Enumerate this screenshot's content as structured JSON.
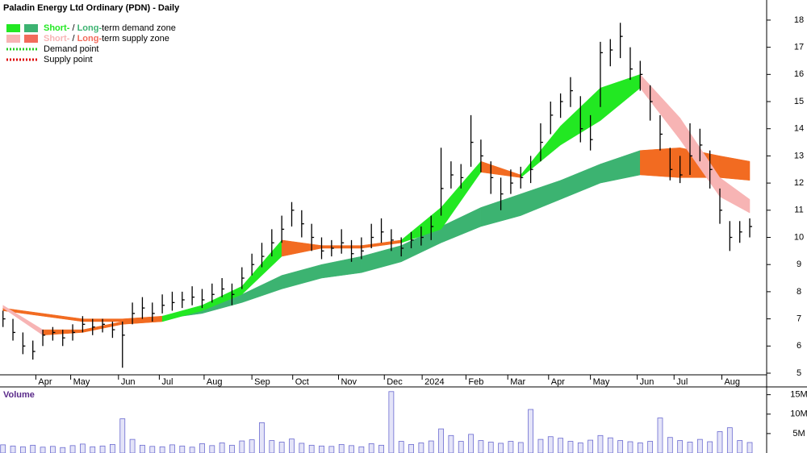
{
  "chart_data": {
    "type": "ohlc",
    "title": "Paladin Energy Ltd Ordinary (PDN) - Daily",
    "legend": [
      {
        "short": "Short-",
        "sep": " / ",
        "long": "Long-",
        "rest": "term demand zone",
        "colors": [
          "#22e822",
          "#3cb371"
        ]
      },
      {
        "short": "Short-",
        "sep": " / ",
        "long": "Long-",
        "rest": "term supply zone",
        "colors": [
          "#f7b4b4",
          "#f26b5b"
        ]
      },
      {
        "label": "Demand point",
        "color": "#22cc22"
      },
      {
        "label": "Supply point",
        "color": "#dd0000"
      }
    ],
    "x": [
      0,
      1,
      2,
      3,
      4,
      5,
      6,
      7,
      8,
      9,
      10,
      11,
      12,
      13,
      14,
      15,
      16,
      17,
      18,
      19,
      20,
      21,
      22,
      23,
      24,
      25,
      26,
      27,
      28,
      29,
      30,
      31,
      32,
      33,
      34,
      35,
      36,
      37,
      38,
      39,
      40,
      41,
      42,
      43,
      44,
      45,
      46,
      47,
      48,
      49,
      50,
      51,
      52,
      53,
      54,
      55,
      56,
      57,
      58,
      59,
      60,
      61,
      62,
      63,
      64,
      65,
      66,
      67,
      68,
      69,
      70,
      71,
      72,
      73,
      74,
      75
    ],
    "high": [
      7.3,
      7.0,
      6.5,
      6.2,
      6.6,
      6.7,
      6.6,
      6.8,
      7.1,
      7.0,
      7.0,
      6.9,
      6.9,
      7.6,
      7.8,
      7.6,
      7.9,
      8.0,
      8.0,
      8.2,
      8.1,
      8.3,
      8.5,
      8.3,
      8.9,
      9.4,
      9.8,
      10.3,
      10.8,
      11.3,
      11.0,
      10.5,
      10.0,
      9.9,
      10.3,
      9.9,
      10.0,
      10.5,
      10.7,
      10.3,
      10.0,
      10.2,
      10.4,
      10.8,
      13.3,
      12.8,
      12.7,
      14.5,
      13.6,
      12.8,
      12.2,
      12.5,
      12.6,
      13.0,
      14.2,
      15.0,
      15.3,
      15.9,
      15.2,
      14.5,
      17.2,
      17.3,
      17.9,
      17.0,
      16.5,
      15.6,
      14.5,
      13.3,
      13.0,
      14.2,
      14.0,
      13.2,
      11.8,
      10.6,
      10.6,
      10.7
    ],
    "low": [
      6.7,
      6.2,
      5.7,
      5.5,
      6.0,
      6.2,
      6.0,
      6.2,
      6.5,
      6.4,
      6.5,
      6.3,
      5.2,
      6.8,
      7.0,
      6.9,
      7.2,
      7.3,
      7.4,
      7.5,
      7.4,
      7.6,
      7.8,
      7.5,
      8.1,
      8.6,
      8.9,
      9.3,
      9.8,
      10.4,
      10.0,
      9.5,
      9.2,
      9.3,
      9.4,
      9.1,
      9.2,
      9.6,
      9.8,
      9.5,
      9.3,
      9.6,
      9.7,
      9.9,
      10.8,
      11.8,
      11.8,
      12.6,
      12.4,
      11.6,
      11.0,
      11.6,
      11.8,
      12.0,
      12.8,
      13.8,
      14.4,
      14.8,
      13.5,
      13.2,
      14.8,
      16.3,
      16.6,
      15.8,
      15.4,
      14.3,
      13.2,
      12.1,
      12.0,
      12.3,
      12.8,
      11.8,
      10.5,
      9.5,
      9.8,
      10.0
    ],
    "close": [
      7.0,
      6.5,
      6.0,
      5.8,
      6.4,
      6.5,
      6.3,
      6.5,
      6.8,
      6.7,
      6.8,
      6.6,
      6.4,
      7.2,
      7.4,
      7.2,
      7.5,
      7.6,
      7.7,
      7.8,
      7.7,
      7.9,
      8.1,
      7.9,
      8.5,
      9.0,
      9.3,
      9.8,
      10.3,
      11.0,
      10.5,
      10.0,
      9.5,
      9.6,
      9.8,
      9.4,
      9.5,
      10.0,
      10.2,
      9.9,
      9.6,
      9.9,
      10.0,
      10.4,
      11.8,
      12.3,
      12.2,
      13.5,
      13.0,
      12.2,
      11.6,
      12.0,
      12.2,
      12.5,
      13.5,
      14.5,
      15.0,
      15.4,
      14.0,
      13.6,
      16.8,
      16.9,
      17.4,
      16.2,
      16.0,
      15.0,
      13.8,
      12.5,
      12.3,
      13.0,
      13.4,
      12.5,
      11.0,
      10.0,
      10.2,
      10.4
    ],
    "color": "#000000",
    "xlim": [
      -0.3,
      76.7
    ],
    "xticks": [
      {
        "value": 3.3,
        "label": "Apr"
      },
      {
        "value": 6.8,
        "label": "May"
      },
      {
        "value": 11.6,
        "label": "Jun"
      },
      {
        "value": 15.7,
        "label": "Jul"
      },
      {
        "value": 20.2,
        "label": "Aug"
      },
      {
        "value": 25.0,
        "label": "Sep"
      },
      {
        "value": 29.1,
        "label": "Oct"
      },
      {
        "value": 33.7,
        "label": "Nov"
      },
      {
        "value": 38.3,
        "label": "Dec"
      },
      {
        "value": 42.1,
        "label": "2024"
      },
      {
        "value": 46.5,
        "label": "Feb"
      },
      {
        "value": 50.7,
        "label": "Mar"
      },
      {
        "value": 54.8,
        "label": "Apr"
      },
      {
        "value": 59.0,
        "label": "May"
      },
      {
        "value": 63.7,
        "label": "Jun"
      },
      {
        "value": 67.4,
        "label": "Jul"
      },
      {
        "value": 72.2,
        "label": "Aug"
      }
    ],
    "ylim": [
      4.94,
      18.74
    ],
    "yticks": [
      5,
      6,
      7,
      8,
      9,
      10,
      11,
      12,
      13,
      14,
      15,
      16,
      17,
      18
    ],
    "short_zone": {
      "x": [
        0,
        4,
        8,
        12,
        16,
        20,
        24,
        28,
        32,
        36,
        40,
        44,
        48,
        52,
        56,
        60,
        64,
        68,
        72,
        75
      ],
      "upper": [
        7.5,
        6.6,
        6.6,
        6.9,
        7.1,
        7.5,
        8.2,
        9.9,
        9.7,
        9.7,
        9.9,
        11.1,
        12.8,
        12.3,
        14.1,
        15.5,
        16.0,
        14.4,
        12.2,
        11.4
      ],
      "lower": [
        7.4,
        6.4,
        6.5,
        6.8,
        6.9,
        7.3,
        7.9,
        9.3,
        9.6,
        9.6,
        9.8,
        10.3,
        12.4,
        12.2,
        13.4,
        14.3,
        15.5,
        13.6,
        11.5,
        10.9
      ],
      "colors": [
        "#f7b4b4",
        "#f26b21",
        "#f26b21",
        "#f26b21",
        "#22e822",
        "#22e822",
        "#22e822",
        "#f26b21",
        "#f26b21",
        "#f26b21",
        "#22e822",
        "#22e822",
        "#f26b21",
        "#22e822",
        "#22e822",
        "#22e822",
        "#f7b4b4",
        "#f7b4b4",
        "#f7b4b4"
      ]
    },
    "long_zone": {
      "x": [
        0,
        8,
        12,
        16,
        20,
        24,
        28,
        32,
        36,
        40,
        44,
        48,
        52,
        56,
        60,
        64,
        68,
        72,
        75
      ],
      "upper": [
        7.4,
        7.0,
        7.0,
        7.1,
        7.3,
        7.9,
        8.6,
        9.0,
        9.3,
        9.7,
        10.4,
        11.1,
        11.6,
        12.1,
        12.7,
        13.2,
        13.3,
        13.0,
        12.8
      ],
      "lower": [
        7.3,
        6.9,
        6.9,
        7.0,
        7.2,
        7.6,
        8.1,
        8.5,
        8.7,
        9.1,
        9.8,
        10.4,
        10.8,
        11.4,
        12.0,
        12.3,
        12.2,
        12.2,
        12.1
      ],
      "colors": [
        "#f26b21",
        "#f26b21",
        "#f26b21",
        "#3cb371",
        "#3cb371",
        "#3cb371",
        "#3cb371",
        "#3cb371",
        "#3cb371",
        "#3cb371",
        "#3cb371",
        "#3cb371",
        "#3cb371",
        "#3cb371",
        "#3cb371",
        "#f26b21",
        "#f26b21",
        "#f26b21"
      ]
    },
    "volume": {
      "label": "Volume",
      "color": "#6a6ad0",
      "values": [
        2100000,
        1800000,
        1600000,
        2000000,
        1500000,
        1700000,
        1400000,
        1900000,
        2300000,
        1600000,
        1800000,
        2200000,
        8800000,
        3500000,
        2000000,
        1700000,
        1600000,
        2100000,
        1800000,
        1500000,
        2400000,
        1900000,
        2600000,
        2000000,
        3100000,
        3400000,
        7800000,
        3200000,
        2800000,
        3600000,
        2500000,
        2000000,
        1800000,
        1700000,
        2200000,
        1900000,
        1600000,
        2400000,
        2000000,
        15800000,
        3000000,
        2200000,
        2600000,
        3100000,
        6200000,
        4500000,
        3000000,
        4800000,
        3200000,
        2800000,
        2500000,
        3000000,
        2700000,
        11200000,
        3500000,
        4200000,
        3800000,
        3000000,
        2600000,
        3300000,
        4500000,
        3900000,
        3200000,
        2900000,
        2600000,
        3000000,
        9000000,
        4000000,
        3200000,
        2800000,
        3500000,
        2900000,
        5500000,
        6500000,
        3200000,
        2700000
      ],
      "ylim": [
        0,
        17000000
      ],
      "yticks": [
        {
          "value": 5000000,
          "label": "5M"
        },
        {
          "value": 10000000,
          "label": "10M"
        },
        {
          "value": 15000000,
          "label": "15M"
        }
      ]
    }
  }
}
